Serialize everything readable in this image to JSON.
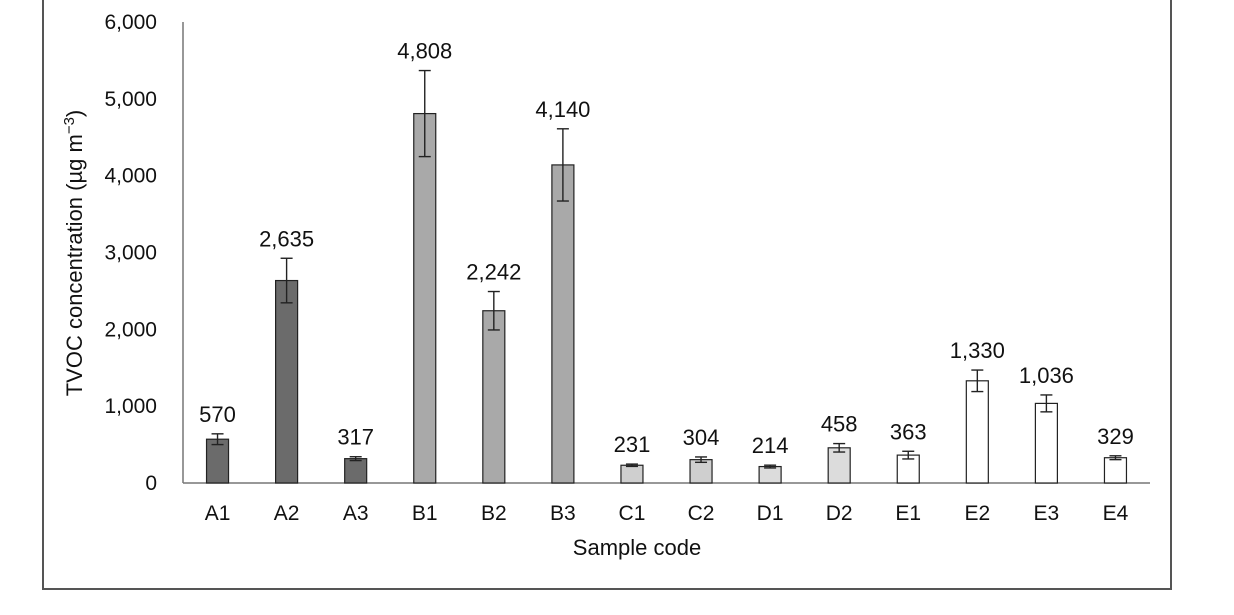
{
  "chart_data": {
    "type": "bar",
    "title": "",
    "xlabel": "Sample code",
    "ylabel": "TVOC concentration (µg m",
    "ylabel_superscript": "−3",
    "ylabel_close": ")",
    "ylim": [
      0,
      6000
    ],
    "yticks": [
      0,
      1000,
      2000,
      3000,
      4000,
      5000,
      6000
    ],
    "ytick_labels": [
      "0",
      "1,000",
      "2,000",
      "3,000",
      "4,000",
      "5,000",
      "6,000"
    ],
    "grid": false,
    "legend": "none",
    "categories": [
      "A1",
      "A2",
      "A3",
      "B1",
      "B2",
      "B3",
      "C1",
      "C2",
      "D1",
      "D2",
      "E1",
      "E2",
      "E3",
      "E4"
    ],
    "values": [
      570,
      2635,
      317,
      4808,
      2242,
      4140,
      231,
      304,
      214,
      458,
      363,
      1330,
      1036,
      329
    ],
    "value_labels": [
      "570",
      "2,635",
      "317",
      "4,808",
      "2,242",
      "4,140",
      "231",
      "304",
      "214",
      "458",
      "363",
      "1,330",
      "1,036",
      "329"
    ],
    "error": [
      70,
      290,
      25,
      560,
      250,
      470,
      15,
      35,
      18,
      55,
      50,
      140,
      110,
      25
    ],
    "group_colors": {
      "A": "#6b6b6b",
      "B": "#a9a9a9",
      "C": "#cfcfcf",
      "D": "#dcdcdc",
      "E": "#ffffff"
    }
  }
}
